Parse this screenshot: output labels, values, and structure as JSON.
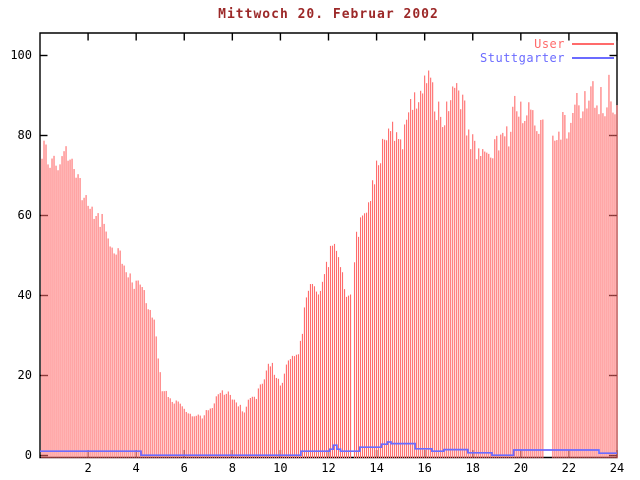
{
  "window": {
    "title": "Mittwoch 20. Februar 2002"
  },
  "colors": {
    "background": "#ffffff",
    "axis": "#000000",
    "tick_label": "#000000",
    "title_text": "#9c2828",
    "user_series": "#ff6b6b",
    "stuttgarter_series": "#6b6bff"
  },
  "chart_data": {
    "type": "bar",
    "title": "Mittwoch 20. Februar 2002",
    "xlabel": "",
    "ylabel": "",
    "xlim": [
      0,
      24
    ],
    "ylim": [
      0,
      105
    ],
    "x_ticks": [
      2,
      4,
      6,
      8,
      10,
      12,
      14,
      16,
      18,
      20,
      22,
      24
    ],
    "y_ticks": [
      0,
      20,
      40,
      60,
      80,
      100
    ],
    "grid": false,
    "legend_position": "top-right",
    "bar_interval_hours": 0.08333,
    "series": [
      {
        "name": "User",
        "style": "impulses",
        "color": "#ff6b6b",
        "gaps": [
          [
            12.96,
            13.04
          ],
          [
            20.99,
            21.26
          ]
        ],
        "envelope_points": [
          [
            0,
            75.5
          ],
          [
            0.25,
            76
          ],
          [
            0.45,
            72.5
          ],
          [
            0.8,
            74.5
          ],
          [
            1.0,
            76.5
          ],
          [
            1.1,
            77
          ],
          [
            1.35,
            72
          ],
          [
            1.6,
            68.5
          ],
          [
            1.9,
            64
          ],
          [
            2.15,
            61
          ],
          [
            2.4,
            59
          ],
          [
            2.7,
            58
          ],
          [
            2.9,
            54
          ],
          [
            3.1,
            52.5
          ],
          [
            3.3,
            50
          ],
          [
            3.5,
            47.5
          ],
          [
            3.7,
            45.5
          ],
          [
            3.9,
            43
          ],
          [
            4.1,
            42.5
          ],
          [
            4.35,
            39.5
          ],
          [
            4.6,
            36
          ],
          [
            4.8,
            33
          ],
          [
            4.95,
            22
          ],
          [
            5.1,
            16
          ],
          [
            5.3,
            15
          ],
          [
            5.6,
            13.5
          ],
          [
            5.9,
            12
          ],
          [
            6.2,
            10.5
          ],
          [
            6.5,
            9.5
          ],
          [
            6.8,
            10
          ],
          [
            7.1,
            12
          ],
          [
            7.35,
            14.5
          ],
          [
            7.6,
            15.5
          ],
          [
            7.9,
            15
          ],
          [
            8.1,
            14
          ],
          [
            8.45,
            11
          ],
          [
            8.7,
            13.5
          ],
          [
            9.0,
            14.5
          ],
          [
            9.2,
            18
          ],
          [
            9.45,
            22
          ],
          [
            9.6,
            23
          ],
          [
            9.8,
            20.5
          ],
          [
            10.0,
            17
          ],
          [
            10.2,
            21
          ],
          [
            10.45,
            24.5
          ],
          [
            10.7,
            26
          ],
          [
            10.9,
            28
          ],
          [
            11.05,
            40
          ],
          [
            11.3,
            42
          ],
          [
            11.55,
            40.5
          ],
          [
            11.8,
            44
          ],
          [
            12.0,
            48.5
          ],
          [
            12.2,
            53
          ],
          [
            12.35,
            50
          ],
          [
            12.55,
            44.5
          ],
          [
            12.75,
            41
          ],
          [
            12.9,
            40
          ],
          [
            13.0,
            42
          ],
          [
            13.15,
            54
          ],
          [
            13.35,
            59
          ],
          [
            13.55,
            62
          ],
          [
            13.75,
            64.5
          ],
          [
            13.95,
            69.5
          ],
          [
            14.15,
            75
          ],
          [
            14.35,
            79
          ],
          [
            14.55,
            81
          ],
          [
            14.95,
            81
          ],
          [
            15.1,
            77.5
          ],
          [
            15.3,
            84
          ],
          [
            15.5,
            87
          ],
          [
            15.7,
            90
          ],
          [
            15.9,
            94
          ],
          [
            16.1,
            95.5
          ],
          [
            16.25,
            92.5
          ],
          [
            16.45,
            86
          ],
          [
            16.7,
            85
          ],
          [
            16.85,
            84
          ],
          [
            17.05,
            89
          ],
          [
            17.2,
            92
          ],
          [
            17.45,
            90
          ],
          [
            17.6,
            90
          ],
          [
            17.75,
            82
          ],
          [
            17.95,
            79
          ],
          [
            18.15,
            76.5
          ],
          [
            18.4,
            74
          ],
          [
            18.65,
            73
          ],
          [
            18.85,
            75.5
          ],
          [
            19.05,
            79
          ],
          [
            19.25,
            81.5
          ],
          [
            19.5,
            80
          ],
          [
            19.7,
            86
          ],
          [
            19.9,
            88
          ],
          [
            20.1,
            85
          ],
          [
            20.35,
            85.5
          ],
          [
            20.6,
            83
          ],
          [
            21.0,
            83
          ],
          [
            21.3,
            79
          ],
          [
            21.55,
            79.5
          ],
          [
            21.75,
            84
          ],
          [
            21.95,
            79
          ],
          [
            22.15,
            83
          ],
          [
            22.35,
            88
          ],
          [
            22.55,
            87.5
          ],
          [
            22.7,
            91
          ],
          [
            22.85,
            88
          ],
          [
            23.0,
            91
          ],
          [
            23.15,
            86
          ],
          [
            23.35,
            89
          ],
          [
            23.5,
            87
          ],
          [
            23.7,
            93
          ],
          [
            23.85,
            88
          ],
          [
            24,
            88
          ]
        ]
      },
      {
        "name": "Stuttgarter",
        "style": "step-line",
        "color": "#6b6bff",
        "points": [
          [
            0,
            1
          ],
          [
            4.2,
            0
          ],
          [
            10.85,
            1
          ],
          [
            12.05,
            1.5
          ],
          [
            12.2,
            2.5
          ],
          [
            12.35,
            1.5
          ],
          [
            12.5,
            1
          ],
          [
            13.3,
            2
          ],
          [
            14.2,
            2.75
          ],
          [
            14.45,
            3.3
          ],
          [
            14.6,
            2.9
          ],
          [
            15.6,
            1.6
          ],
          [
            16.3,
            1
          ],
          [
            16.8,
            1.4
          ],
          [
            17.8,
            0.6
          ],
          [
            18.8,
            0
          ],
          [
            19.7,
            1.3
          ],
          [
            23.25,
            0.5
          ],
          [
            24,
            0.5
          ]
        ]
      }
    ]
  }
}
